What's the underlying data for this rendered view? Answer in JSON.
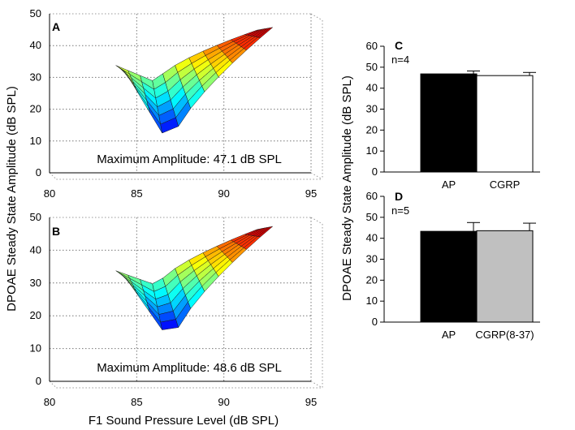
{
  "figure": {
    "left_ylabel": "DPOAE Steady State Amplitude (dB SPL)",
    "right_ylabel": "DPOAE Steady State Amplitude (dB SPL)",
    "xlabel": "F1 Sound Pressure Level (dB SPL)"
  },
  "chart_data": [
    {
      "panel": "A",
      "type": "surface3d",
      "annotation": "Maximum Amplitude: 47.1 dB SPL",
      "xlabel": "F1 Sound Pressure Level (dB SPL)",
      "ylabel": "DPOAE Steady State Amplitude (dB SPL)",
      "x_ticks": [
        "80",
        "85",
        "90",
        "95"
      ],
      "y_ticks": [
        "0",
        "10",
        "20",
        "30",
        "40",
        "50"
      ],
      "xlim": [
        80,
        95
      ],
      "ylim": [
        0,
        50
      ],
      "max_amplitude": 47.1,
      "min_amplitude": 11,
      "notch_f1": 86.2,
      "plateau_amplitude": 34
    },
    {
      "panel": "B",
      "type": "surface3d",
      "annotation": "Maximum Amplitude: 48.6 dB SPL",
      "xlabel": "F1 Sound Pressure Level (dB SPL)",
      "ylabel": "DPOAE Steady State Amplitude (dB SPL)",
      "x_ticks": [
        "80",
        "85",
        "90",
        "95"
      ],
      "y_ticks": [
        "0",
        "10",
        "20",
        "30",
        "40",
        "50"
      ],
      "xlim": [
        80,
        95
      ],
      "ylim": [
        0,
        50
      ],
      "max_amplitude": 48.6,
      "min_amplitude": 14,
      "notch_f1": 86.3,
      "plateau_amplitude": 34
    },
    {
      "panel": "C",
      "type": "bar",
      "n_label": "n=4",
      "categories": [
        "AP",
        "CGRP"
      ],
      "values": [
        46.8,
        46.0
      ],
      "errors": [
        1.4,
        1.5
      ],
      "colors": [
        "#000000",
        "#ffffff"
      ],
      "ylim": [
        0,
        60
      ],
      "y_ticks": [
        "0",
        "10",
        "20",
        "30",
        "40",
        "50",
        "60"
      ],
      "ylabel": "DPOAE Steady State Amplitude (dB SPL)"
    },
    {
      "panel": "D",
      "type": "bar",
      "n_label": "n=5",
      "categories": [
        "AP",
        "CGRP(8-37)"
      ],
      "values": [
        43.3,
        43.6
      ],
      "errors": [
        4.2,
        3.6
      ],
      "colors": [
        "#000000",
        "#c0c0c0"
      ],
      "ylim": [
        0,
        60
      ],
      "y_ticks": [
        "0",
        "10",
        "20",
        "30",
        "40",
        "50",
        "60"
      ],
      "ylabel": "DPOAE Steady State Amplitude (dB SPL)"
    }
  ]
}
